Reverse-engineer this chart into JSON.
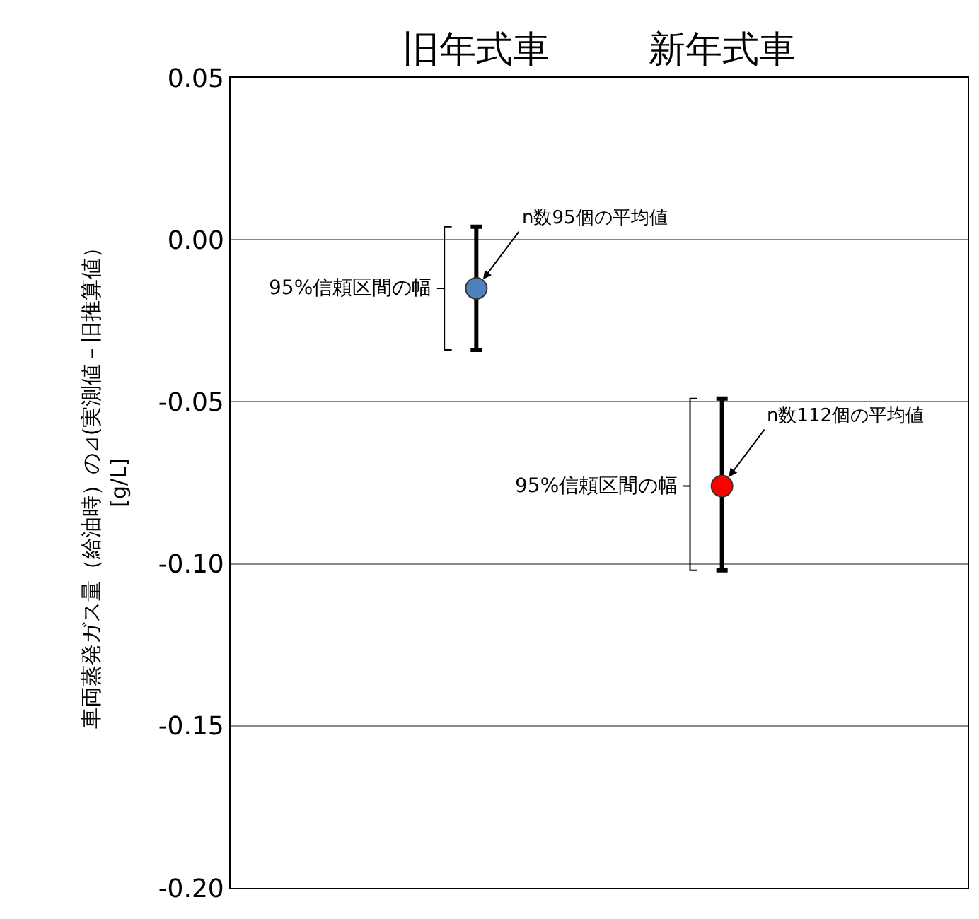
{
  "chart_data": {
    "type": "scatter",
    "categories": [
      "旧年式車",
      "新年式車"
    ],
    "values": [
      -0.015,
      -0.076
    ],
    "colors": [
      "#4f81bd",
      "#ff0000"
    ],
    "errors": [
      [
        -0.034,
        0.004
      ],
      [
        -0.102,
        -0.049
      ]
    ],
    "marker": "circle",
    "ylabel": "車両蒸発ガス量（給油時）の⊿(実測値－旧推算値）\n[g/L]",
    "ylim": [
      -0.2,
      0.05
    ],
    "yticks": [
      0.05,
      {
        "value": 0,
        "label": "0.00"
      },
      -0.05,
      {
        "value": -0.1,
        "label": "-0.10"
      },
      -0.15,
      {
        "value": -0.2,
        "label": "-0.20"
      }
    ],
    "grid": "y",
    "annotations": [
      {
        "text": "n数95個の平均値",
        "x": "旧年式車",
        "y": -0.015
      },
      {
        "text": "95%信頼区間の幅",
        "x": "旧年式車",
        "y": -0.015
      },
      {
        "text": "n数112個の平均値",
        "x": "新年式車",
        "y": -0.076
      },
      {
        "text": "95%信頼区間の幅",
        "x": "新年式車",
        "y": -0.076
      }
    ]
  }
}
